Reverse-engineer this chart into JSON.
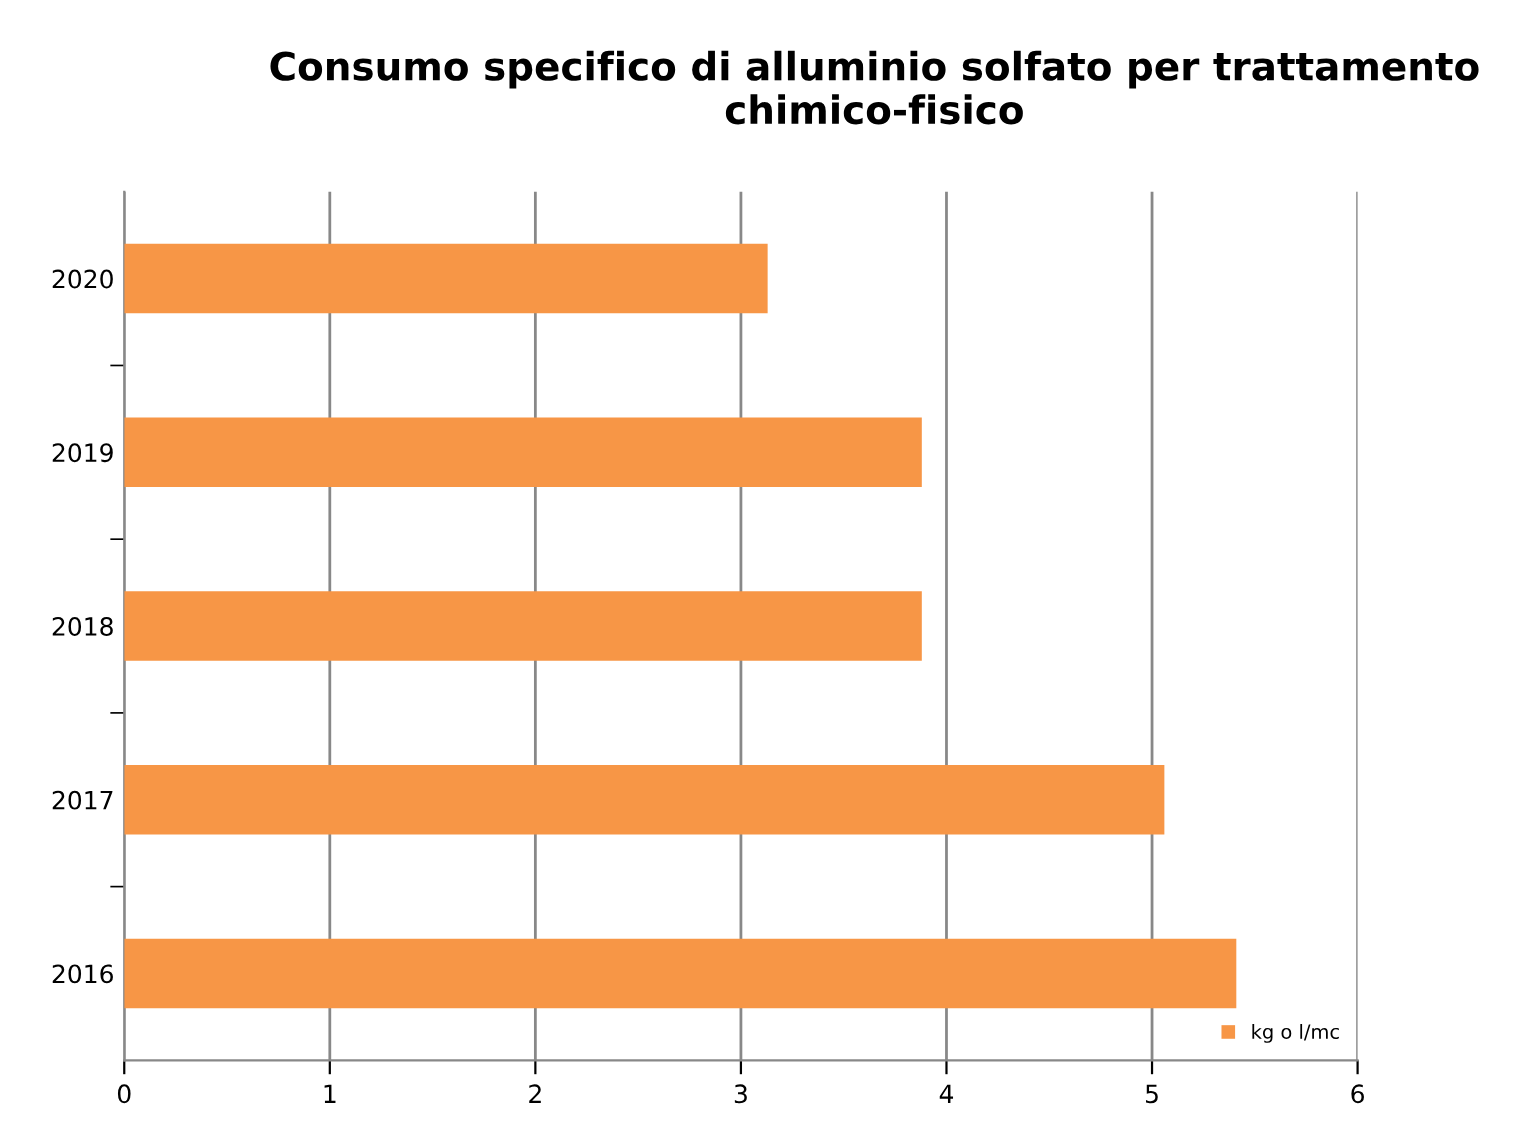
{
  "chart_data": {
    "type": "bar",
    "orientation": "horizontal",
    "title": "Consumo specifico di alluminio solfato per trattamento\nchimico-fisico",
    "categories": [
      "2020",
      "2019",
      "2018",
      "2017",
      "2016"
    ],
    "series": [
      {
        "name": "kg o l/mc",
        "color": "#f79646",
        "values": [
          3.13,
          3.88,
          3.88,
          5.06,
          5.41
        ]
      }
    ],
    "xlim": [
      0,
      6
    ],
    "xticks": [
      0,
      1,
      2,
      3,
      4,
      5,
      6
    ],
    "grid": "x",
    "legend": "bottom right"
  }
}
